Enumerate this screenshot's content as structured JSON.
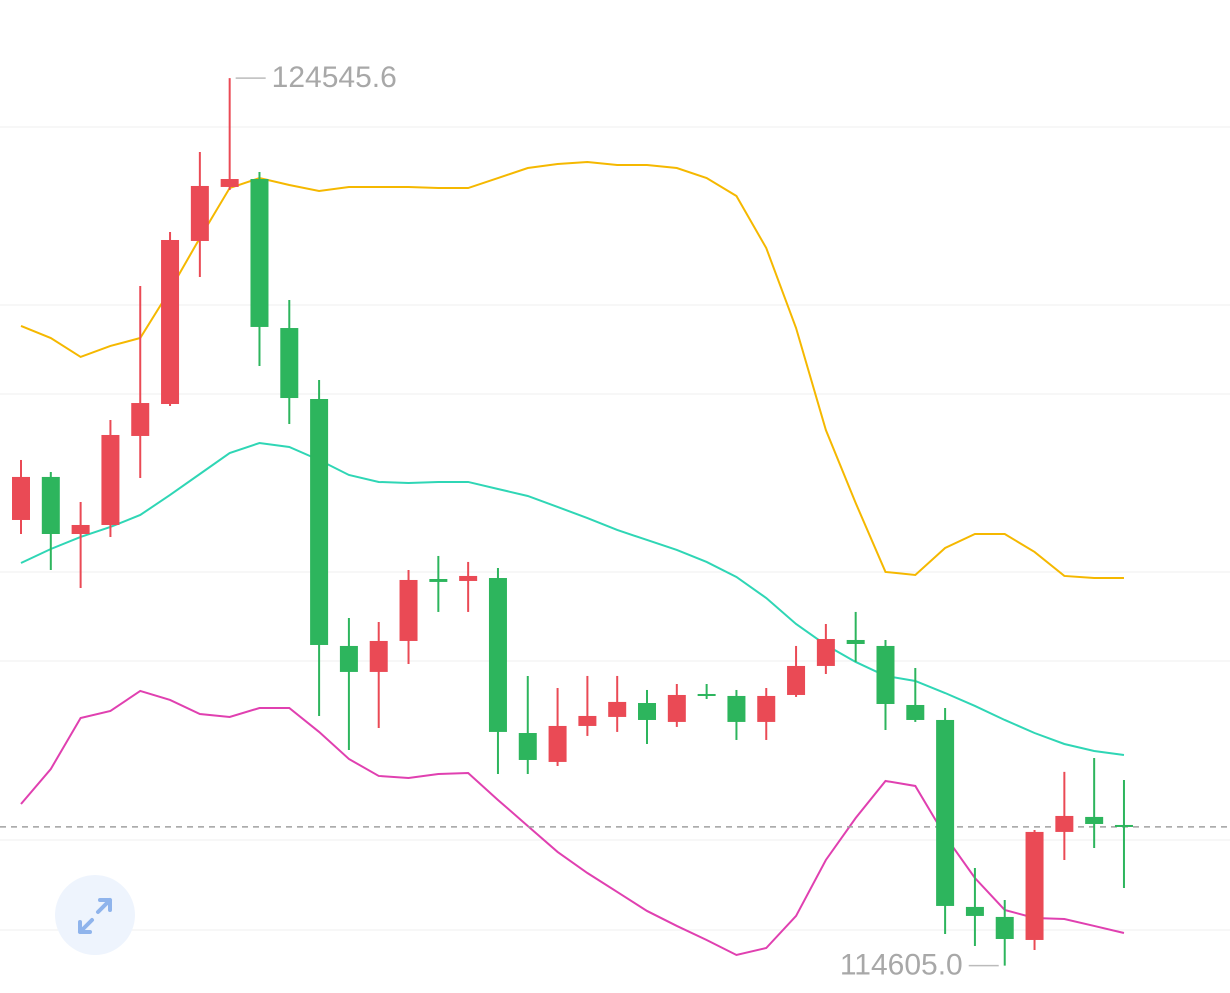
{
  "chart_data": {
    "type": "candlestick",
    "ylim": [
      114298,
      125420
    ],
    "up_color": "#ea4a55",
    "down_color": "#2db55d",
    "open": [
      119596,
      120078,
      119439,
      119540,
      120537,
      120895,
      122721,
      123326,
      123415,
      121746,
      120951,
      118185,
      117894,
      118241,
      118935,
      118913,
      118946,
      117210,
      116886,
      117289,
      117390,
      117546,
      117334,
      117647,
      117625,
      117334,
      117636,
      117961,
      118252,
      118185,
      117524,
      117356,
      115262,
      115150,
      114892,
      116102,
      116270,
      116180
    ],
    "high": [
      120268,
      120134,
      119798,
      120716,
      122217,
      122822,
      123718,
      124545.6,
      123494,
      122060,
      121164,
      118498,
      118454,
      119036,
      119193,
      119126,
      119058,
      117849,
      117714,
      117849,
      117849,
      117692,
      117759,
      117759,
      117692,
      117714,
      118185,
      118431,
      118566,
      118252,
      117938,
      117490,
      115698,
      115340,
      116124,
      116774,
      116930,
      116684
    ],
    "low": [
      119439,
      119036,
      118834,
      119406,
      120066,
      120873,
      122318,
      123292,
      121321,
      120671,
      117401,
      117020,
      117266,
      117983,
      118566,
      118566,
      116751,
      116751,
      116841,
      117177,
      117222,
      117087,
      117278,
      117591,
      117132,
      117132,
      117614,
      117871,
      118006,
      117244,
      117334,
      114959,
      114825,
      114605.0,
      114780,
      115788,
      115922,
      115474
    ],
    "close": [
      120078,
      119439,
      119540,
      120548,
      120906,
      122732,
      123337,
      123415,
      121758,
      120962,
      118196,
      117894,
      118241,
      118924,
      118902,
      118969,
      117222,
      116908,
      117289,
      117401,
      117558,
      117356,
      117636,
      117625,
      117334,
      117625,
      117961,
      118263,
      118207,
      117535,
      117356,
      115273,
      115161,
      114903,
      116102,
      116281,
      116191,
      116158
    ],
    "bands": [
      {
        "color": "#f5b800",
        "values": [
          121769,
          121634,
          121422,
          121545,
          121634,
          122172,
          122754,
          123314,
          123426,
          123348,
          123281,
          123326,
          123326,
          123326,
          123314,
          123314,
          123426,
          123538,
          123583,
          123606,
          123572,
          123572,
          123538,
          123426,
          123225,
          122642,
          121746,
          120604,
          119786,
          119014,
          118980,
          119282,
          119439,
          119439,
          119238,
          118969,
          118946,
          118946
        ]
      },
      {
        "color": "#2fd6b5",
        "values": [
          119114,
          119271,
          119406,
          119518,
          119652,
          119876,
          120111,
          120346,
          120458,
          120414,
          120268,
          120100,
          120022,
          120010,
          120022,
          120022,
          119943,
          119865,
          119742,
          119618,
          119484,
          119372,
          119260,
          119126,
          118958,
          118722,
          118431,
          118196,
          118006,
          117849,
          117793,
          117658,
          117513,
          117356,
          117210,
          117087,
          117009,
          116964
        ]
      },
      {
        "color": "#e040b0",
        "values": [
          116415,
          116807,
          117378,
          117457,
          117681,
          117580,
          117423,
          117390,
          117490,
          117490,
          117222,
          116919,
          116729,
          116706,
          116751,
          116762,
          116460,
          116169,
          115878,
          115642,
          115430,
          115217,
          115049,
          114892,
          114724,
          114802,
          115161,
          115788,
          116258,
          116673,
          116617,
          116057,
          115586,
          115228,
          115138,
          115127,
          115049,
          114970
        ]
      }
    ],
    "annotations": [
      {
        "text": "124545.6"
      },
      {
        "text": "114605.0"
      }
    ]
  }
}
